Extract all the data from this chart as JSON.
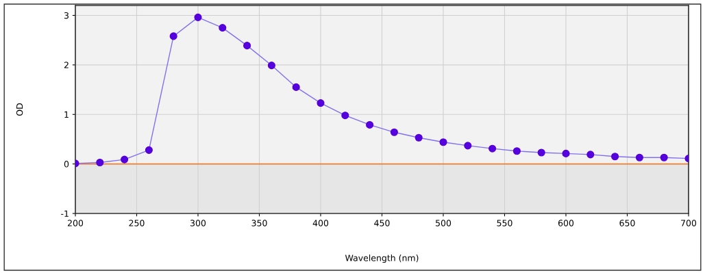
{
  "chart_data": {
    "type": "line",
    "xlabel": "Wavelength (nm)",
    "ylabel": "OD",
    "x": [
      200,
      220,
      240,
      260,
      280,
      300,
      320,
      340,
      360,
      380,
      400,
      420,
      440,
      460,
      480,
      500,
      520,
      540,
      560,
      580,
      600,
      620,
      640,
      660,
      680,
      700
    ],
    "series": [
      {
        "color": "#5500dd",
        "values": [
          0.01,
          0.03,
          0.09,
          0.28,
          2.58,
          2.96,
          2.75,
          2.39,
          1.99,
          1.55,
          1.23,
          0.98,
          0.79,
          0.64,
          0.53,
          0.44,
          0.37,
          0.31,
          0.26,
          0.23,
          0.21,
          0.19,
          0.15,
          0.13,
          0.13,
          0.11
        ]
      }
    ],
    "xlim": [
      200,
      700
    ],
    "xticks": [
      200,
      250,
      300,
      350,
      400,
      450,
      500,
      550,
      600,
      650,
      700
    ],
    "ylim": [
      -1,
      3.2
    ],
    "yticks": [
      -1,
      0,
      1,
      2,
      3
    ],
    "ref_lines": [
      {
        "axis": "y",
        "value": 0,
        "color": "#f08030"
      }
    ],
    "bands": [
      {
        "axis": "y",
        "from": -1,
        "to": 0,
        "color": "#e6e6e6"
      }
    ],
    "grid": true,
    "marker": "circle",
    "line_style": "solid"
  }
}
